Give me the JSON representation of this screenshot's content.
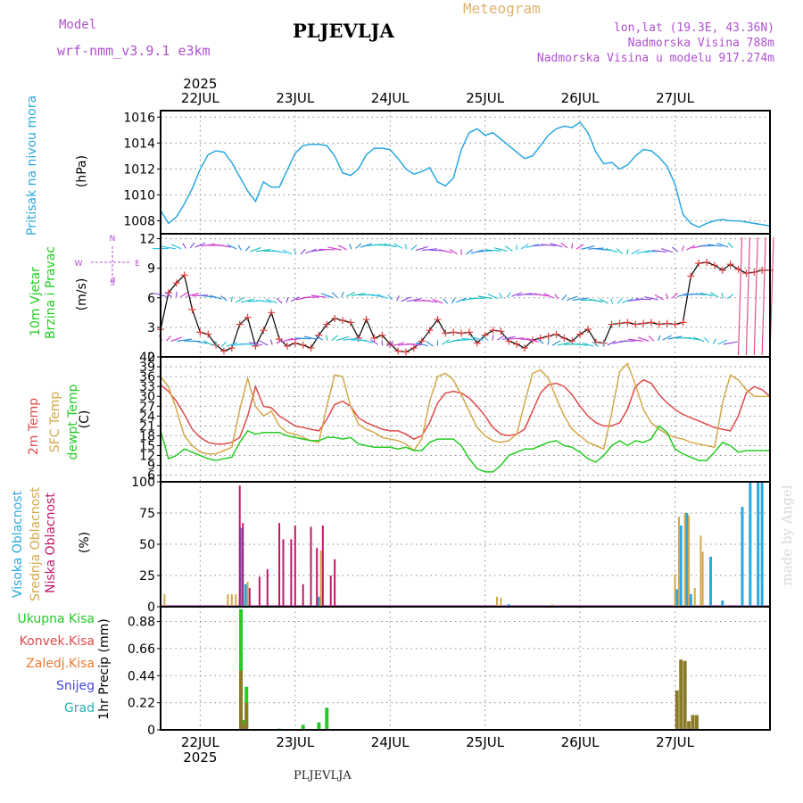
{
  "header": {
    "model_label": "Model",
    "model_name": "wrf-nmm_v3.9.1  e3km",
    "station": "PLJEVLJA",
    "meteogram": "Meteogram",
    "lonlat": "lon,lat (19.3E, 43.36N)",
    "elevation": "Nadmorska Visina 788m",
    "model_elevation": "Nadmorska Visina u modelu 917.274m",
    "year": "2025"
  },
  "footer": {
    "station": "PLJEVLJA",
    "credit": "made by Angel"
  },
  "labels": {
    "pressure": [
      "Pritisak na nivou mora",
      "(hPa)"
    ],
    "wind": [
      "10m Vjetar",
      "Brzina i Pravac",
      "(m/s)"
    ],
    "compass": [
      "N",
      "S",
      "W",
      "E",
      "α"
    ],
    "temp": [
      "2m Temp",
      "SFC Temp",
      "dewpt Temp",
      "(C)"
    ],
    "cloud": [
      "Visoka Oblacnost",
      "Srednja Oblacnost",
      "Niska Oblacnost",
      "(%)"
    ],
    "precip_legend": [
      "Ukupna Kisa",
      "Konvek.Kisa",
      "Zaledj.Kisa",
      "Snijeg",
      "Grad"
    ],
    "precip_unit": "1hr Precip (mm)"
  },
  "colors": {
    "pressure": "#2aa8e0",
    "wind_speed_line": "#000000",
    "wind_markers": "#e03c3c",
    "temp2m": "#e04a4a",
    "sfc": "#d4a84a",
    "dewpt": "#22cc22",
    "cloud_high": "#2aa8e0",
    "cloud_mid": "#d4a84a",
    "cloud_low": "#c0186a",
    "rain_total": "#22cc22",
    "rain_conv": "#e04a4a",
    "rain_frz": "#f07830",
    "snow": "#4444dd",
    "hail": "#22b0b0",
    "title_purple": "#b050d0",
    "meteogram_orange": "#e0b070"
  },
  "chart_data": [
    {
      "type": "line",
      "title": "Pritisak na nivou mora",
      "ylabel": "(hPa)",
      "ylim": [
        1007,
        1016.5
      ],
      "yticks": [
        1008,
        1010,
        1012,
        1014,
        1016
      ],
      "xlabels": [
        "22JUL",
        "23JUL",
        "24JUL",
        "25JUL",
        "26JUL",
        "27JUL"
      ],
      "x": [
        0,
        2,
        4,
        6,
        8,
        10,
        12,
        14,
        16,
        18,
        20,
        22,
        24,
        26,
        28,
        30,
        32,
        34,
        36,
        38,
        40,
        42,
        44,
        46,
        48,
        50,
        52,
        54,
        56,
        58,
        60,
        62,
        64,
        66,
        68,
        70,
        72,
        74,
        76,
        78,
        80,
        82,
        84,
        86,
        88,
        90,
        92,
        94,
        96,
        98,
        100,
        102,
        104,
        106,
        108,
        110,
        112,
        114,
        116,
        118,
        120,
        122,
        124,
        126,
        128,
        130,
        132,
        134,
        136,
        138,
        140,
        142,
        144,
        146,
        148,
        150,
        152,
        154
      ],
      "series": [
        {
          "name": "Pritisak",
          "values": [
            1008.8,
            1007.8,
            1008.3,
            1009.3,
            1010.5,
            1012.0,
            1013.1,
            1013.4,
            1013.3,
            1012.5,
            1011.4,
            1010.3,
            1009.5,
            1011.0,
            1010.6,
            1010.6,
            1011.9,
            1013.2,
            1013.8,
            1013.9,
            1013.9,
            1013.8,
            1013.0,
            1011.7,
            1011.5,
            1012.0,
            1013.1,
            1013.6,
            1013.6,
            1013.5,
            1012.8,
            1012.0,
            1011.6,
            1011.8,
            1012.1,
            1011.0,
            1010.7,
            1011.3,
            1013.5,
            1014.8,
            1015.1,
            1014.6,
            1014.8,
            1014.3,
            1013.8,
            1013.3,
            1012.8,
            1013.0,
            1013.8,
            1014.6,
            1015.1,
            1015.3,
            1015.2,
            1015.6,
            1014.8,
            1013.3,
            1012.4,
            1012.5,
            1012.0,
            1012.3,
            1013.0,
            1013.5,
            1013.4,
            1012.9,
            1012.2,
            1010.8,
            1008.5,
            1007.8,
            1007.5,
            1007.8,
            1008.0,
            1008.1,
            1008.0,
            1008.0,
            1007.9,
            1007.8,
            1007.7,
            1007.6
          ]
        }
      ]
    },
    {
      "type": "line",
      "title": "10m Vjetar Brzina i Pravac",
      "ylabel": "(m/s)",
      "ylim": [
        0,
        12.5
      ],
      "yticks": [
        0,
        3,
        6,
        9,
        12
      ],
      "x": [
        0,
        2,
        4,
        6,
        8,
        10,
        12,
        14,
        16,
        18,
        20,
        22,
        24,
        26,
        28,
        30,
        32,
        34,
        36,
        38,
        40,
        42,
        44,
        46,
        48,
        50,
        52,
        54,
        56,
        58,
        60,
        62,
        64,
        66,
        68,
        70,
        72,
        74,
        76,
        78,
        80,
        82,
        84,
        86,
        88,
        90,
        92,
        94,
        96,
        98,
        100,
        102,
        104,
        106,
        108,
        110,
        112,
        114,
        116,
        118,
        120,
        122,
        124,
        126,
        128,
        130,
        132,
        134,
        136,
        138,
        140,
        142,
        144,
        146,
        148,
        150,
        152,
        154
      ],
      "series": [
        {
          "name": "Brzina",
          "values": [
            2.8,
            6.5,
            7.5,
            8.3,
            4.8,
            2.5,
            2.3,
            1.2,
            0.6,
            0.9,
            3.3,
            4.0,
            1.1,
            2.7,
            4.5,
            1.8,
            1.1,
            1.4,
            1.2,
            0.9,
            2.2,
            3.3,
            3.9,
            3.7,
            3.5,
            1.9,
            3.8,
            1.9,
            2.2,
            1.3,
            0.6,
            0.5,
            0.9,
            1.6,
            2.7,
            3.8,
            2.4,
            2.5,
            2.4,
            2.5,
            1.4,
            2.2,
            2.7,
            2.6,
            1.6,
            1.3,
            0.9,
            1.7,
            1.9,
            2.1,
            2.3,
            1.9,
            1.6,
            2.3,
            2.8,
            1.5,
            1.4,
            3.3,
            3.4,
            3.5,
            3.3,
            3.4,
            3.5,
            3.3,
            3.4,
            3.3,
            3.5,
            8.2,
            9.5,
            9.6,
            9.3,
            8.8,
            9.4,
            8.9,
            8.5,
            8.6,
            8.8,
            8.8
          ]
        }
      ]
    },
    {
      "type": "line",
      "title": "2m Temp / SFC Temp / dewpt Temp",
      "ylabel": "(C)",
      "ylim": [
        4,
        42
      ],
      "yticks": [
        6,
        9,
        12,
        15,
        18,
        21,
        24,
        27,
        30,
        33,
        36,
        39,
        42
      ],
      "x": [
        0,
        2,
        4,
        6,
        8,
        10,
        12,
        14,
        16,
        18,
        20,
        22,
        24,
        26,
        28,
        30,
        32,
        34,
        36,
        38,
        40,
        42,
        44,
        46,
        48,
        50,
        52,
        54,
        56,
        58,
        60,
        62,
        64,
        66,
        68,
        70,
        72,
        74,
        76,
        78,
        80,
        82,
        84,
        86,
        88,
        90,
        92,
        94,
        96,
        98,
        100,
        102,
        104,
        106,
        108,
        110,
        112,
        114,
        116,
        118,
        120,
        122,
        124,
        126,
        128,
        130,
        132,
        134,
        136,
        138,
        140,
        142,
        144,
        146,
        148,
        150,
        152,
        154
      ],
      "series": [
        {
          "name": "2m Temp",
          "values": [
            33.5,
            31.5,
            28.5,
            24.5,
            20.0,
            17.5,
            16.0,
            15.5,
            15.5,
            16.0,
            17.5,
            24.0,
            33.0,
            27.0,
            26.5,
            24.0,
            22.5,
            21.0,
            20.5,
            20.0,
            19.5,
            23.0,
            27.5,
            28.5,
            27.0,
            23.5,
            22.0,
            21.0,
            20.0,
            19.5,
            19.5,
            18.5,
            17.0,
            18.0,
            22.0,
            28.0,
            31.0,
            31.5,
            31.0,
            29.5,
            27.0,
            24.0,
            20.5,
            18.5,
            18.0,
            18.5,
            20.0,
            25.5,
            31.0,
            33.5,
            34.0,
            33.0,
            30.5,
            27.0,
            24.0,
            22.0,
            21.0,
            21.0,
            22.0,
            26.0,
            33.0,
            35.0,
            34.0,
            30.5,
            28.0,
            26.0,
            24.5,
            23.5,
            22.5,
            21.5,
            20.5,
            20.0,
            19.5,
            24.0,
            31.0,
            33.0,
            32.0,
            30.0
          ]
        },
        {
          "name": "SFC Temp",
          "values": [
            36.0,
            33.0,
            26.0,
            18.0,
            15.0,
            13.0,
            12.5,
            12.5,
            13.5,
            14.5,
            26.0,
            35.5,
            27.0,
            24.0,
            25.5,
            21.0,
            19.0,
            18.5,
            17.5,
            16.5,
            16.0,
            27.0,
            36.5,
            36.0,
            27.0,
            21.5,
            20.0,
            19.0,
            17.5,
            17.0,
            16.5,
            15.5,
            13.5,
            17.0,
            28.5,
            36.0,
            37.0,
            35.0,
            30.5,
            25.5,
            20.5,
            18.0,
            16.5,
            16.0,
            16.5,
            18.5,
            28.0,
            37.0,
            38.0,
            35.5,
            29.5,
            24.0,
            20.0,
            18.0,
            16.0,
            15.0,
            14.0,
            25.0,
            37.5,
            40.0,
            33.5,
            26.0,
            22.0,
            20.0,
            18.5,
            17.5,
            17.0,
            16.0,
            15.5,
            15.0,
            14.5,
            28.0,
            36.5,
            35.0,
            32.0,
            30.0,
            30.0,
            30.0
          ]
        },
        {
          "name": "dewpt Temp",
          "values": [
            19.5,
            11.0,
            12.0,
            14.0,
            13.0,
            12.0,
            11.0,
            10.5,
            11.0,
            11.5,
            16.0,
            19.5,
            18.5,
            19.0,
            19.0,
            19.0,
            18.0,
            17.5,
            17.0,
            16.5,
            16.5,
            17.5,
            17.5,
            17.0,
            17.5,
            15.5,
            15.0,
            14.5,
            14.5,
            14.5,
            14.0,
            14.5,
            13.5,
            13.5,
            16.0,
            17.0,
            17.0,
            17.0,
            15.0,
            11.0,
            8.0,
            7.0,
            7.0,
            9.0,
            12.0,
            13.0,
            14.0,
            14.0,
            15.0,
            16.0,
            16.5,
            15.0,
            14.5,
            13.0,
            11.0,
            10.0,
            12.0,
            15.0,
            16.5,
            15.0,
            16.5,
            16.0,
            17.0,
            21.0,
            19.0,
            14.0,
            12.5,
            11.5,
            10.5,
            10.5,
            13.0,
            16.0,
            15.0,
            13.0,
            13.5,
            13.5,
            13.5,
            13.5
          ]
        }
      ]
    },
    {
      "type": "bar",
      "title": "Oblacnost",
      "ylabel": "(%)",
      "ylim": [
        0,
        100
      ],
      "yticks": [
        0,
        25,
        50,
        75,
        100
      ],
      "series": [
        {
          "name": "Visoka",
          "x": [
            20.5,
            21.5,
            40,
            88,
            98.5,
            130.5,
            131.5,
            133,
            134,
            139,
            142,
            147,
            149,
            151,
            152
          ],
          "values": [
            63,
            18,
            8,
            2,
            1,
            14,
            65,
            75,
            10,
            40,
            5,
            80,
            100,
            100,
            100
          ]
        },
        {
          "name": "Srednja",
          "x": [
            1,
            17,
            18,
            19,
            20,
            22,
            40.5,
            85,
            86,
            99,
            130,
            131,
            132.5,
            133.5,
            135,
            136.5,
            137
          ],
          "values": [
            10,
            10,
            10,
            10,
            10,
            20,
            45,
            8,
            7,
            2,
            26,
            72,
            75,
            73,
            15,
            57,
            44
          ]
        },
        {
          "name": "Niska",
          "x": [
            20,
            20.8,
            22.5,
            25,
            27,
            30,
            31,
            33,
            34,
            36,
            38,
            39.5,
            41,
            43,
            44
          ],
          "values": [
            97,
            67,
            15,
            24,
            30,
            67,
            54,
            54,
            65,
            18,
            64,
            47,
            65,
            25,
            38
          ]
        }
      ]
    },
    {
      "type": "bar",
      "title": "1hr Precip",
      "ylabel": "1hr Precip (mm)",
      "ylim": [
        0,
        1.0
      ],
      "yticks": [
        0,
        0.22,
        0.44,
        0.66,
        0.88
      ],
      "xlabels": [
        "22JUL",
        "23JUL",
        "24JUL",
        "25JUL",
        "26JUL",
        "27JUL"
      ],
      "series": [
        {
          "name": "Ukupna Kisa",
          "x": [
            20.3,
            21,
            21.7,
            30,
            36,
            40,
            42
          ],
          "values": [
            0.98,
            0.08,
            0.35,
            0.01,
            0.04,
            0.06,
            0.18
          ]
        },
        {
          "name": "Konvek.Kisa",
          "x": [
            20.3,
            21,
            21.7,
            130.5,
            131.5,
            132.5,
            133.5,
            134.5,
            135.5
          ],
          "values": [
            0.48,
            0.05,
            0.22,
            0.32,
            0.57,
            0.56,
            0.07,
            0.12,
            0.12
          ]
        },
        {
          "name": "Zaledj.Kisa",
          "x": [],
          "values": []
        },
        {
          "name": "Snijeg",
          "x": [],
          "values": []
        },
        {
          "name": "Grad",
          "x": [],
          "values": []
        }
      ]
    }
  ]
}
